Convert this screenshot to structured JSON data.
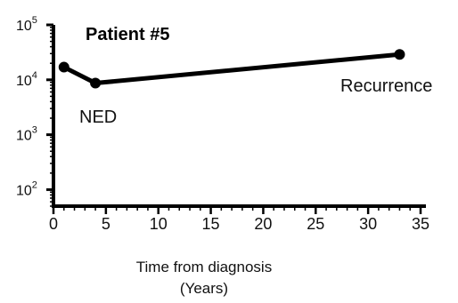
{
  "chart_data": {
    "type": "line",
    "title": "Patient #5",
    "xlabel_lines": [
      "Time from diagnosis",
      "(Years)"
    ],
    "ylabel": "",
    "yscale": "log",
    "xlim": [
      0,
      35
    ],
    "ylim": [
      50,
      100000
    ],
    "x_ticks": [
      0,
      5,
      10,
      15,
      20,
      25,
      30,
      35
    ],
    "y_ticks": [
      {
        "value": 100,
        "base": "10",
        "exp": "2"
      },
      {
        "value": 1000,
        "base": "10",
        "exp": "3"
      },
      {
        "value": 10000,
        "base": "10",
        "exp": "4"
      },
      {
        "value": 100000,
        "base": "10",
        "exp": "5"
      }
    ],
    "series": [
      {
        "x": [
          1,
          4,
          33
        ],
        "y": [
          17000,
          8700,
          29000
        ]
      }
    ],
    "annotations": [
      {
        "text": "NED",
        "x": 4,
        "y": 8700
      },
      {
        "text": "Recurrence",
        "x": 33,
        "y": 29000
      }
    ]
  }
}
